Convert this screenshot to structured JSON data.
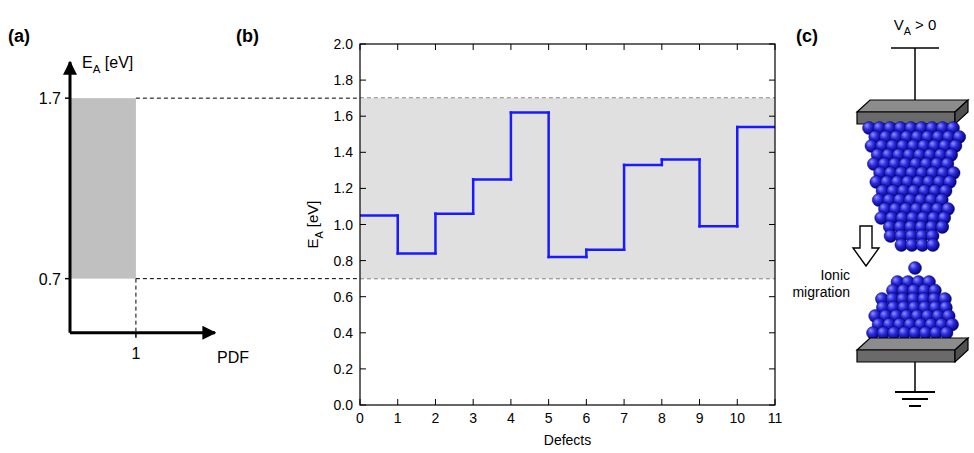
{
  "chart_data": [
    {
      "panel": "(a)",
      "type": "histogram",
      "orientation": "horizontal",
      "x_label": "PDF",
      "y_label": {
        "base": "E",
        "sub": "A",
        "suffix": " [eV]"
      },
      "bins": [
        0.7,
        1.7
      ],
      "values": [
        1
      ],
      "color": "#c0c0c0",
      "xlim": [
        0,
        2.2
      ],
      "ylim": [
        0.4,
        1.9
      ],
      "xticks": [
        1
      ],
      "yticks": [
        0.7,
        1.7
      ]
    },
    {
      "panel": "(b)",
      "type": "line",
      "line_style": "step",
      "x_label": "Defects",
      "y_label": {
        "base": "E",
        "sub": "A",
        "suffix": " [eV]"
      },
      "x": [
        0,
        1,
        2,
        3,
        4,
        5,
        6,
        7,
        8,
        9,
        10
      ],
      "values": [
        1.05,
        0.84,
        1.06,
        1.25,
        1.62,
        0.82,
        0.86,
        1.33,
        1.36,
        0.99,
        1.54
      ],
      "color": "#1a1aff",
      "band": [
        0.7,
        1.7
      ],
      "xlim": [
        0,
        11
      ],
      "ylim": [
        0,
        2
      ],
      "xticks": [
        0,
        1,
        2,
        3,
        4,
        5,
        6,
        7,
        8,
        9,
        10,
        11
      ],
      "yticks": [
        {
          "value": 0,
          "label": "0.0"
        },
        0.2,
        0.4,
        0.6,
        0.8,
        {
          "value": 1,
          "label": "1.0"
        },
        1.2,
        1.4,
        1.6,
        1.8,
        {
          "value": 2,
          "label": "2.0"
        }
      ]
    }
  ],
  "diagram": {
    "panel": "(c)",
    "voltage": {
      "base": "V",
      "sub": "A",
      "suffix": " > 0"
    },
    "arrow_label": "Ionic migration"
  }
}
